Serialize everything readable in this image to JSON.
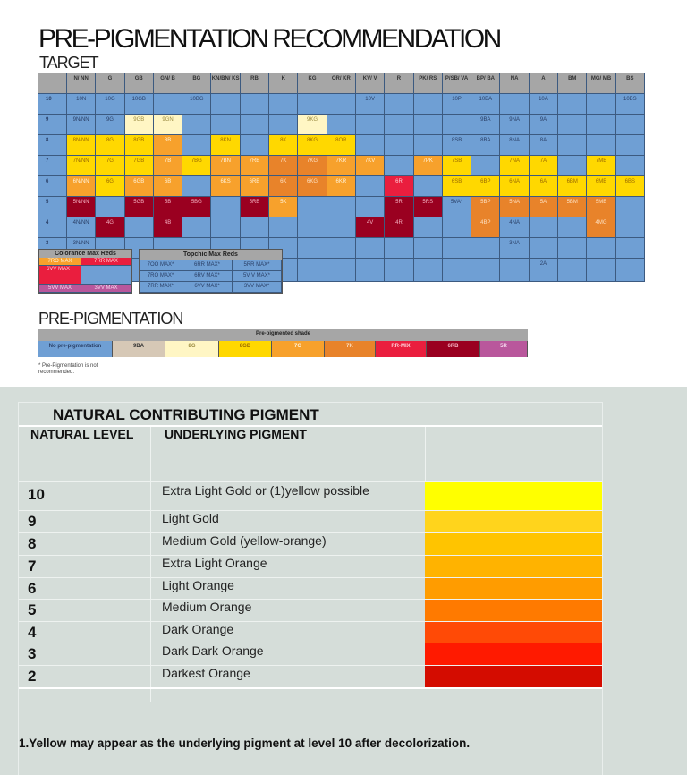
{
  "title": "PRE-PIGMENTATION RECOMMENDATION",
  "subtitle": "TARGET",
  "colors": {
    "b": "#6f9fd4",
    "y": "#ffd800",
    "ly": "#fff6c4",
    "o": "#f7a12c",
    "do": "#e8832a",
    "dr": "#9a0020",
    "r": "#ea1e3e",
    "p": "#b9579c",
    "bg": "#d6c8b6"
  },
  "target_table": {
    "headers": [
      "N/ NN",
      "G",
      "GB",
      "GN/ B",
      "BG",
      "KN/BN/ KS",
      "RB",
      "K",
      "KG",
      "OR/ KR",
      "KV/ V",
      "R",
      "PK/ RS",
      "P/SB/ VA",
      "BP/ BA",
      "NA",
      "A",
      "BM",
      "MG/ MB",
      "BS"
    ],
    "rows": [
      {
        "level": "10",
        "cells": [
          [
            "10N",
            "b"
          ],
          [
            "10G",
            "b"
          ],
          [
            "10GB",
            "b"
          ],
          [
            "",
            "b"
          ],
          [
            "10BG",
            "b"
          ],
          [
            "",
            "b"
          ],
          [
            "",
            "b"
          ],
          [
            "",
            "b"
          ],
          [
            "",
            "b"
          ],
          [
            "",
            "b"
          ],
          [
            "10V",
            "b"
          ],
          [
            "",
            "b"
          ],
          [
            "",
            "b"
          ],
          [
            "10P",
            "b"
          ],
          [
            "10BA",
            "b"
          ],
          [
            "",
            "b"
          ],
          [
            "10A",
            "b"
          ],
          [
            "",
            "b"
          ],
          [
            "",
            "b"
          ],
          [
            "10BS",
            "b"
          ]
        ]
      },
      {
        "level": "9",
        "cells": [
          [
            "9N/NN",
            "b"
          ],
          [
            "9G",
            "b"
          ],
          [
            "9GB",
            "ly"
          ],
          [
            "9GN",
            "ly"
          ],
          [
            "",
            "b"
          ],
          [
            "",
            "b"
          ],
          [
            "",
            "b"
          ],
          [
            "",
            "b"
          ],
          [
            "9KG",
            "ly"
          ],
          [
            "",
            "b"
          ],
          [
            "",
            "b"
          ],
          [
            "",
            "b"
          ],
          [
            "",
            "b"
          ],
          [
            "",
            "b"
          ],
          [
            "9BA",
            "b"
          ],
          [
            "9NA",
            "b"
          ],
          [
            "9A",
            "b"
          ],
          [
            "",
            "b"
          ],
          [
            "",
            "b"
          ],
          [
            "",
            "b"
          ]
        ]
      },
      {
        "level": "8",
        "cells": [
          [
            "8N/NN",
            "y"
          ],
          [
            "8G",
            "y"
          ],
          [
            "8GB",
            "y"
          ],
          [
            "8B",
            "o"
          ],
          [
            "",
            "b"
          ],
          [
            "8KN",
            "y"
          ],
          [
            "",
            "b"
          ],
          [
            "8K",
            "y"
          ],
          [
            "8KG",
            "y"
          ],
          [
            "8OR",
            "y"
          ],
          [
            "",
            "b"
          ],
          [
            "",
            "b"
          ],
          [
            "",
            "b"
          ],
          [
            "8SB",
            "b"
          ],
          [
            "8BA",
            "b"
          ],
          [
            "8NA",
            "b"
          ],
          [
            "8A",
            "b"
          ],
          [
            "",
            "b"
          ],
          [
            "",
            "b"
          ],
          [
            "",
            "b"
          ]
        ]
      },
      {
        "level": "7",
        "cells": [
          [
            "7N/NN",
            "y"
          ],
          [
            "7G",
            "y"
          ],
          [
            "7GB",
            "y"
          ],
          [
            "7B",
            "o"
          ],
          [
            "7BG",
            "y"
          ],
          [
            "7BN",
            "o"
          ],
          [
            "7RB",
            "o"
          ],
          [
            "7K",
            "do"
          ],
          [
            "7KG",
            "do"
          ],
          [
            "7KR",
            "o"
          ],
          [
            "7KV",
            "o"
          ],
          [
            "",
            "b"
          ],
          [
            "7PK",
            "o"
          ],
          [
            "7SB",
            "y"
          ],
          [
            "",
            "b"
          ],
          [
            "7NA",
            "y"
          ],
          [
            "7A",
            "y"
          ],
          [
            "",
            "b"
          ],
          [
            "7MB",
            "y"
          ],
          [
            "",
            "b"
          ]
        ]
      },
      {
        "level": "6",
        "cells": [
          [
            "6N/NN",
            "o"
          ],
          [
            "6G",
            "y"
          ],
          [
            "6GB",
            "o"
          ],
          [
            "6B",
            "o"
          ],
          [
            "",
            "b"
          ],
          [
            "6KS",
            "o"
          ],
          [
            "6RB",
            "o"
          ],
          [
            "6K",
            "do"
          ],
          [
            "6KG",
            "do"
          ],
          [
            "6KR",
            "o"
          ],
          [
            "",
            "b"
          ],
          [
            "6R",
            "r"
          ],
          [
            "",
            "b"
          ],
          [
            "6SB",
            "y"
          ],
          [
            "6BP",
            "y"
          ],
          [
            "6NA",
            "y"
          ],
          [
            "6A",
            "y"
          ],
          [
            "6BM",
            "y"
          ],
          [
            "6MB",
            "y"
          ],
          [
            "6BS",
            "y"
          ]
        ]
      },
      {
        "level": "5",
        "cells": [
          [
            "5N/NN",
            "dr"
          ],
          [
            "",
            "b"
          ],
          [
            "5GB",
            "dr"
          ],
          [
            "5B",
            "dr"
          ],
          [
            "5BG",
            "dr"
          ],
          [
            "",
            "b"
          ],
          [
            "5RB",
            "dr"
          ],
          [
            "5K",
            "o"
          ],
          [
            "",
            "b"
          ],
          [
            "",
            "b"
          ],
          [
            "",
            "b"
          ],
          [
            "5R",
            "dr"
          ],
          [
            "5RS",
            "dr"
          ],
          [
            "5VA*",
            "b"
          ],
          [
            "5BP",
            "do"
          ],
          [
            "5NA",
            "do"
          ],
          [
            "5A",
            "do"
          ],
          [
            "5BM",
            "do"
          ],
          [
            "5MB",
            "do"
          ],
          [
            "",
            "b"
          ]
        ]
      },
      {
        "level": "4",
        "cells": [
          [
            "4N/NN",
            "b"
          ],
          [
            "4G",
            "dr"
          ],
          [
            "",
            "b"
          ],
          [
            "4B",
            "dr"
          ],
          [
            "",
            "b"
          ],
          [
            "",
            "b"
          ],
          [
            "",
            "b"
          ],
          [
            "",
            "b"
          ],
          [
            "",
            "b"
          ],
          [
            "",
            "b"
          ],
          [
            "4V",
            "dr"
          ],
          [
            "4R",
            "dr"
          ],
          [
            "",
            "b"
          ],
          [
            "",
            "b"
          ],
          [
            "4BP",
            "do"
          ],
          [
            "4NA",
            "b"
          ],
          [
            "",
            "b"
          ],
          [
            "",
            "b"
          ],
          [
            "4MG",
            "do"
          ],
          [
            "",
            "b"
          ]
        ]
      },
      {
        "level": "3",
        "cells": [
          [
            "3N/NN",
            "b"
          ],
          [
            "",
            "b"
          ],
          [
            "",
            "b"
          ],
          [
            "",
            "b"
          ],
          [
            "",
            "b"
          ],
          [
            "",
            "b"
          ],
          [
            "",
            "b"
          ],
          [
            "",
            "b"
          ],
          [
            "",
            "b"
          ],
          [
            "",
            "b"
          ],
          [
            "",
            "b"
          ],
          [
            "",
            "b"
          ],
          [
            "",
            "b"
          ],
          [
            "",
            "b"
          ],
          [
            "",
            "b"
          ],
          [
            "3NA",
            "b"
          ],
          [
            "",
            "b"
          ],
          [
            "",
            "b"
          ],
          [
            "",
            "b"
          ],
          [
            "",
            "b"
          ]
        ]
      },
      {
        "level": "",
        "cells": [
          [
            "",
            "b"
          ],
          [
            "",
            "b"
          ],
          [
            "",
            "b"
          ],
          [
            "",
            "b"
          ],
          [
            "",
            "b"
          ],
          [
            "",
            "b"
          ],
          [
            "",
            "b"
          ],
          [
            "",
            "b"
          ],
          [
            "",
            "b"
          ],
          [
            "",
            "b"
          ],
          [
            "",
            "b"
          ],
          [
            "",
            "b"
          ],
          [
            "",
            "b"
          ],
          [
            "",
            "b"
          ],
          [
            "",
            "b"
          ],
          [
            "",
            "b"
          ],
          [
            "2A",
            "b"
          ],
          [
            "",
            "b"
          ],
          [
            "",
            "b"
          ],
          [
            "",
            "b"
          ]
        ]
      }
    ]
  },
  "colorance": {
    "title": "Colorance Max Reds",
    "cells": [
      "7RO MAX",
      "7RR MAX",
      "6VV MAX",
      "",
      "5VV MAX",
      "3VV MAX"
    ]
  },
  "topchic": {
    "title": "Topchic Max Reds",
    "cells": [
      "7OO MAX*",
      "6RR MAX*",
      "5RR MAX*",
      "7RO MAX*",
      "6RV MAX*",
      "5V V MAX*",
      "7RR MAX*",
      "6VV MAX*",
      "3VV MAX*"
    ]
  },
  "prepig": {
    "title": "PRE-PIGMENTATION",
    "header": "Pre-pigmented shade",
    "cells": [
      [
        "No pre-pigmentation",
        "b"
      ],
      [
        "9BA",
        "bg"
      ],
      [
        "8G",
        "ly"
      ],
      [
        "8GB",
        "y"
      ],
      [
        "7G",
        "o"
      ],
      [
        "7K",
        "do"
      ],
      [
        "RR-MIX",
        "r"
      ],
      [
        "6RB",
        "dr"
      ],
      [
        "5R",
        "p"
      ]
    ],
    "note": "* Pre-Pigmentation is not recommended."
  },
  "natural": {
    "title": "NATURAL CONTRIBUTING PIGMENT",
    "col1": "NATURAL LEVEL",
    "col2": "UNDERLYING PIGMENT",
    "rows": [
      {
        "level": "10",
        "pigment": "Extra Light Gold or (1)yellow possible",
        "color": "#ffff00"
      },
      {
        "level": "9",
        "pigment": "Light Gold",
        "color": "#ffd41c"
      },
      {
        "level": "8",
        "pigment": "Medium Gold (yellow-orange)",
        "color": "#ffc400"
      },
      {
        "level": "7",
        "pigment": "Extra Light Orange",
        "color": "#ffb300"
      },
      {
        "level": "6",
        "pigment": "Light Orange",
        "color": "#ff9c00"
      },
      {
        "level": "5",
        "pigment": "Medium Orange",
        "color": "#ff7a00"
      },
      {
        "level": "4",
        "pigment": "Dark Orange",
        "color": "#ff4a06"
      },
      {
        "level": "3",
        "pigment": "Dark Dark Orange",
        "color": "#ff1a00"
      },
      {
        "level": "2",
        "pigment": "Darkest Orange",
        "color": "#d40c00"
      }
    ],
    "footnote": "1.Yellow may appear as the underlying pigment at level 10 after decolorization."
  }
}
